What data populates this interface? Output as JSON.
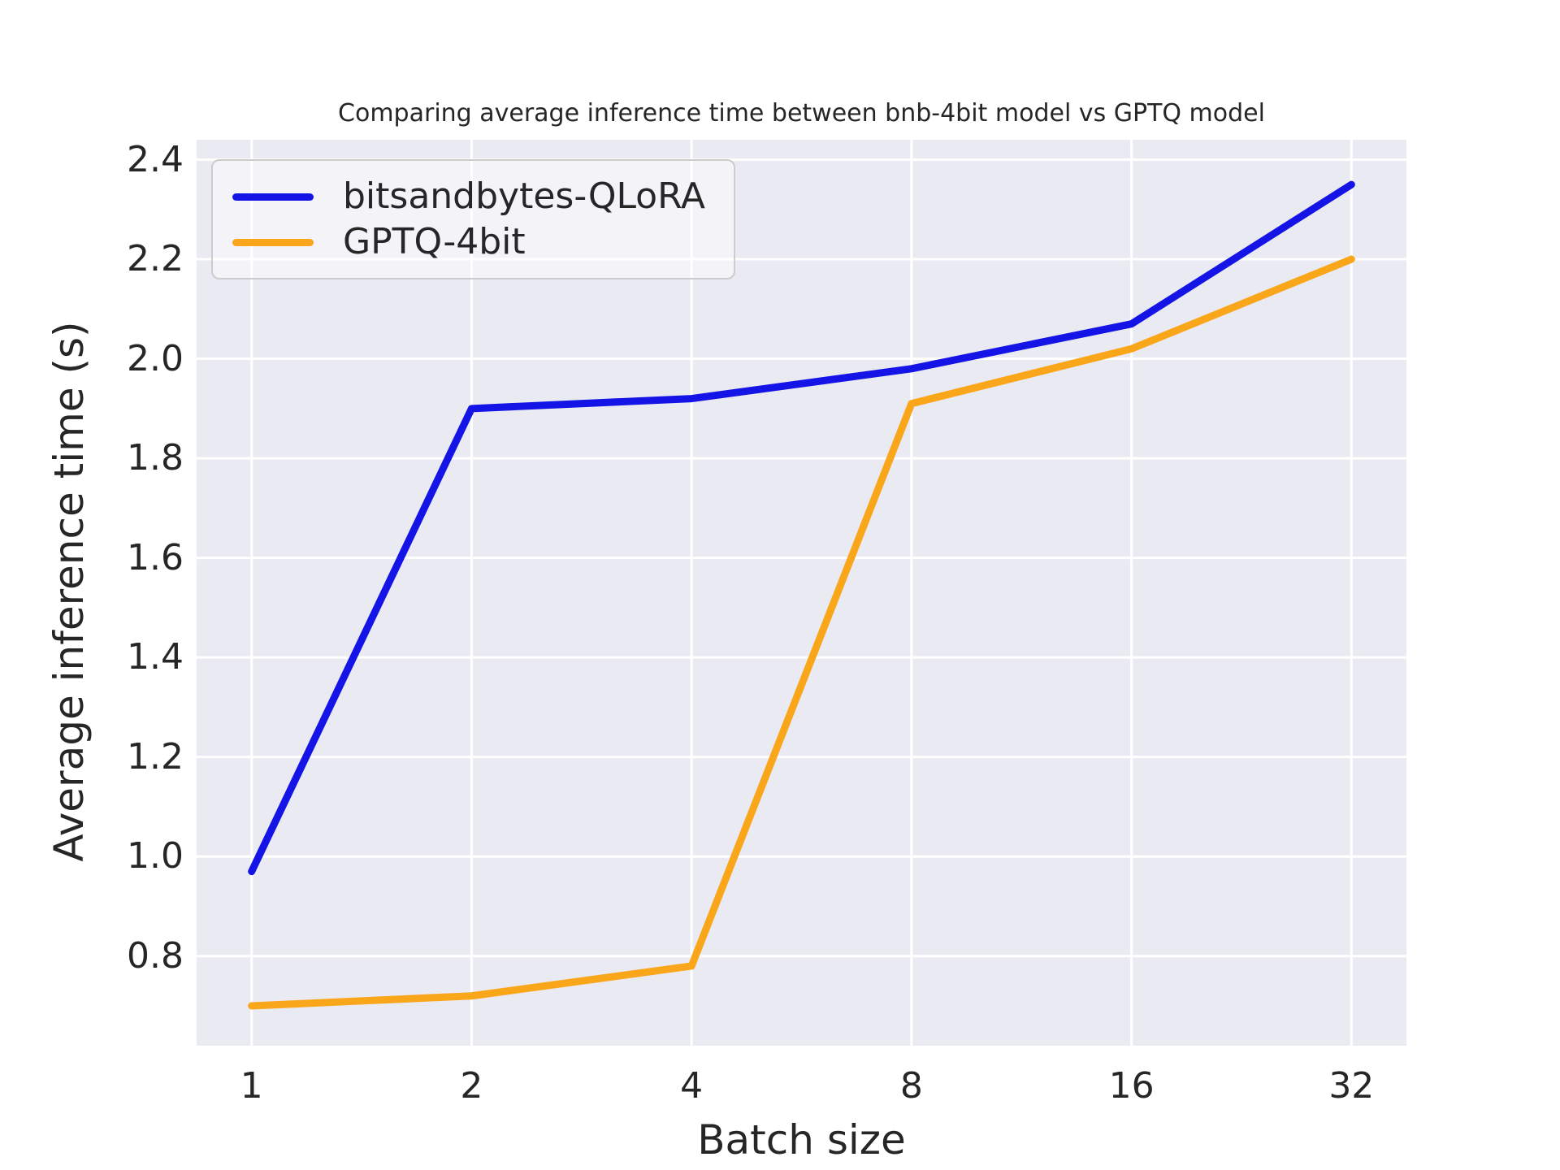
{
  "chart_data": {
    "type": "line",
    "title": "Comparing average inference time between bnb-4bit model vs GPTQ model",
    "xlabel": "Batch size",
    "ylabel": "Average inference time (s)",
    "categories": [
      "1",
      "2",
      "4",
      "8",
      "16",
      "32"
    ],
    "series": [
      {
        "name": "bitsandbytes-QLoRA",
        "color": "#1414e6",
        "values": [
          0.97,
          1.9,
          1.92,
          1.98,
          2.07,
          2.35
        ]
      },
      {
        "name": "GPTQ-4bit",
        "color": "#f9a61a",
        "values": [
          0.7,
          0.72,
          0.78,
          1.91,
          2.02,
          2.2
        ]
      }
    ],
    "yticks": [
      0.8,
      1.0,
      1.2,
      1.4,
      1.6,
      1.8,
      2.0,
      2.2,
      2.4
    ],
    "ylim": [
      0.62,
      2.44
    ],
    "grid": true,
    "legend_position": "upper left",
    "colors": {
      "plot_background": "#eaeaf2",
      "grid": "#ffffff",
      "text": "#262626",
      "figure_background": "#ffffff"
    }
  }
}
